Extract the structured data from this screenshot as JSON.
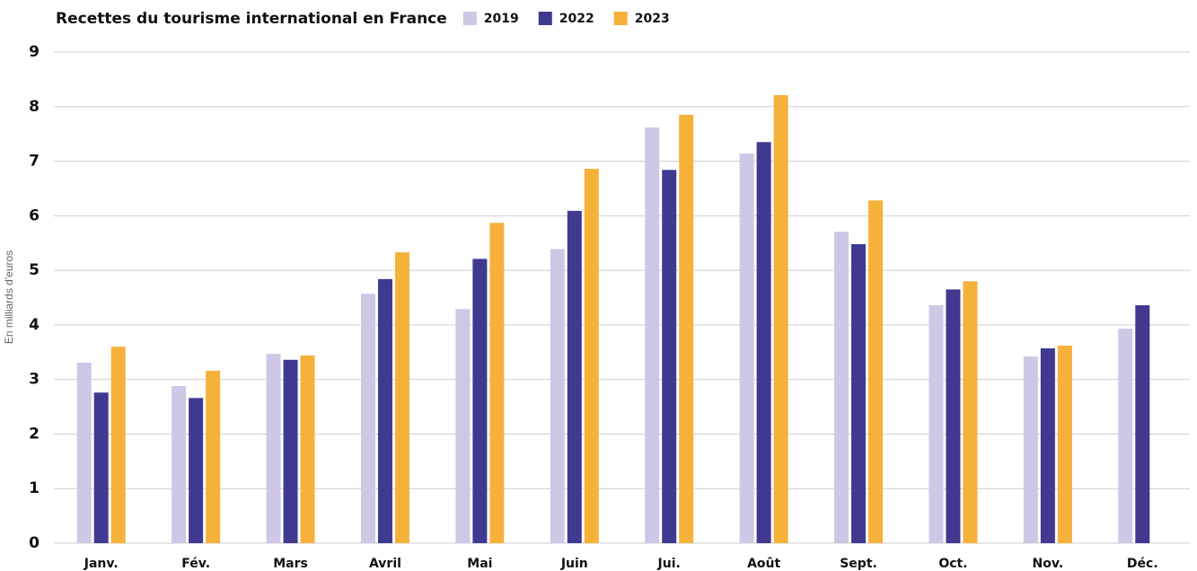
{
  "chart_data": {
    "type": "bar",
    "title": "Recettes du tourisme international en France",
    "y_label": "En milliards d'euros",
    "categories": [
      "Janv.",
      "Fév.",
      "Mars",
      "Avril",
      "Mai",
      "Juin",
      "Jui.",
      "Août",
      "Sept.",
      "Oct.",
      "Nov.",
      "Déc."
    ],
    "series": [
      {
        "name": "2019",
        "color": "#cdc8e6",
        "values": [
          3.31,
          2.88,
          3.47,
          4.57,
          4.29,
          5.39,
          7.62,
          7.14,
          5.71,
          4.36,
          3.42,
          3.93
        ]
      },
      {
        "name": "2022",
        "color": "#3f3a8f",
        "values": [
          2.76,
          2.66,
          3.36,
          4.84,
          5.21,
          6.09,
          6.84,
          7.35,
          5.48,
          4.65,
          3.57,
          4.36
        ]
      },
      {
        "name": "2023",
        "color": "#f6b13a",
        "values": [
          3.6,
          3.16,
          3.44,
          5.33,
          5.87,
          6.86,
          7.85,
          8.21,
          6.28,
          4.8,
          3.62,
          null
        ]
      }
    ],
    "ylim": [
      0,
      9
    ],
    "yticks": [
      0,
      1,
      2,
      3,
      4,
      5,
      6,
      7,
      8,
      9
    ],
    "grid": true,
    "legend": "top"
  }
}
